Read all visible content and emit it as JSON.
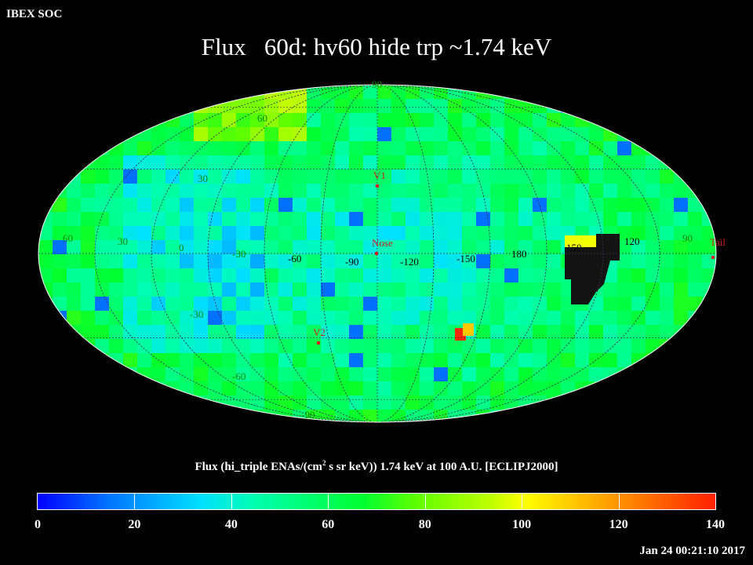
{
  "header": {
    "corner_label": "IBEX SOC",
    "title": "Flux   60d: hv60 hide trp ~1.74 keV"
  },
  "map": {
    "projection": "Mollweide (ecliptic J2000)",
    "lat_labels": [
      "90",
      "60",
      "30",
      "0",
      "-30",
      "-60",
      "-90"
    ],
    "lon_labels": [
      "60",
      "30",
      "0",
      "-30",
      "-60",
      "-90",
      "-120",
      "-150",
      "180",
      "150",
      "120",
      "90"
    ],
    "markers": [
      {
        "label": "V1",
        "color": "#cc2222"
      },
      {
        "label": "Nose",
        "color": "#cc2222"
      },
      {
        "label": "V2",
        "color": "#cc2222"
      },
      {
        "label": "Tail",
        "color": "#cc2222"
      }
    ],
    "label_color": "#008800"
  },
  "colorbar": {
    "title_prefix": "Flux (hi_triple ENAs/(cm",
    "title_sup": "2",
    "title_suffix": " s sr keV))  1.74 keV at 100 A.U. [ECLIPJ2000]",
    "tick_labels": [
      "0",
      "20",
      "40",
      "60",
      "80",
      "100",
      "120",
      "140"
    ],
    "min": 0,
    "max": 140
  },
  "footer": {
    "timestamp": "Jan 24 00:21:10 2017"
  }
}
